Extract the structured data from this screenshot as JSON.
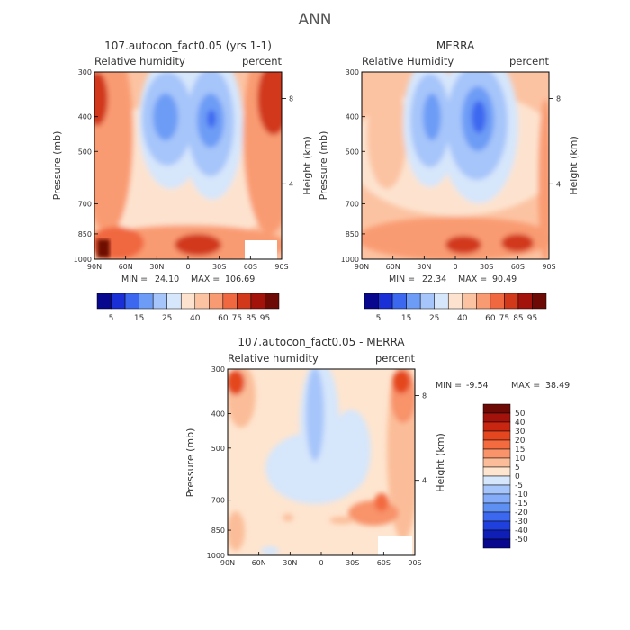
{
  "page_title": "ANN",
  "chart_data": [
    {
      "type": "heatmap",
      "title": "107.autocon_fact0.05 (yrs 1-1)",
      "variable": "Relative humidity",
      "units": "percent",
      "ylabel": "Pressure (mb)",
      "y2label": "Height (km)",
      "x_ticks": [
        "90N",
        "60N",
        "30N",
        "0",
        "30S",
        "60S",
        "90S"
      ],
      "y_ticks": [
        "300",
        "400",
        "500",
        "700",
        "850",
        "1000"
      ],
      "y2_ticks": [
        "8",
        "4"
      ],
      "min_label": "MIN =",
      "min_value": "24.10",
      "max_label": "MAX =",
      "max_value": "106.69",
      "levels": [
        5,
        15,
        25,
        40,
        60,
        75,
        85,
        95
      ]
    },
    {
      "type": "heatmap",
      "title": "MERRA",
      "variable": "Relative Humidity",
      "units": "percent",
      "ylabel": "Pressure (mb)",
      "y2label": "Height (km)",
      "x_ticks": [
        "90N",
        "60N",
        "30N",
        "0",
        "30S",
        "60S",
        "90S"
      ],
      "y_ticks": [
        "300",
        "400",
        "500",
        "700",
        "850",
        "1000"
      ],
      "y2_ticks": [
        "8",
        "4"
      ],
      "min_label": "MIN =",
      "min_value": "22.34",
      "max_label": "MAX =",
      "max_value": "90.49",
      "levels": [
        5,
        15,
        25,
        40,
        60,
        75,
        85,
        95
      ]
    },
    {
      "type": "heatmap",
      "title": "107.autocon_fact0.05 - MERRA",
      "variable": "Relative humidity",
      "units": "percent",
      "ylabel": "Pressure (mb)",
      "y2label": "Height (km)",
      "x_ticks": [
        "90N",
        "60N",
        "30N",
        "0",
        "30S",
        "60S",
        "90S"
      ],
      "y_ticks": [
        "300",
        "400",
        "500",
        "700",
        "850",
        "1000"
      ],
      "y2_ticks": [
        "8",
        "4"
      ],
      "min_label": "MIN =",
      "min_value": "-9.54",
      "max_label": "MAX =",
      "max_value": "38.49",
      "levels": [
        50,
        40,
        30,
        20,
        15,
        10,
        5,
        0,
        -5,
        -10,
        -15,
        -20,
        -30,
        -40,
        -50
      ]
    }
  ],
  "colors": {
    "abs_scale": [
      "#08088e",
      "#1a2fd6",
      "#3c68f0",
      "#6d9cf6",
      "#a6c5fa",
      "#d6e6fb",
      "#fde3cf",
      "#fcc3a2",
      "#f99b72",
      "#f0683f",
      "#d2391b",
      "#a3130c",
      "#6e0a06"
    ],
    "diff_scale": [
      "#6e0a06",
      "#a3130c",
      "#c92612",
      "#e4461f",
      "#f36b3f",
      "#f8936a",
      "#fbbd99",
      "#fee5cf",
      "#d6e6fb",
      "#a6c5fa",
      "#84acf8",
      "#5e90f3",
      "#3c68f0",
      "#1f40dc",
      "#0f1eb4",
      "#08088e"
    ]
  }
}
